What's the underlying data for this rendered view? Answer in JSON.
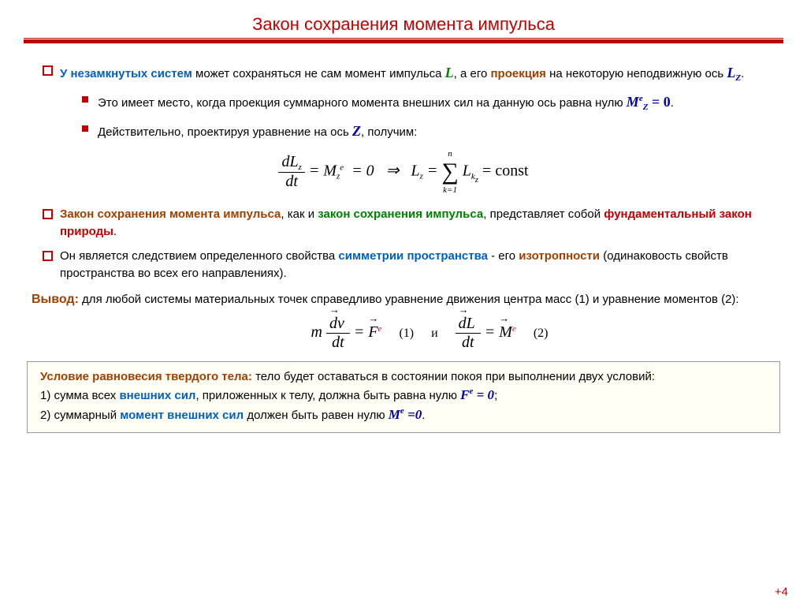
{
  "title": "Закон сохранения момента импульса",
  "b1": {
    "lead1": "У незамкнутых систем",
    "txt1": " может сохраняться не сам момент импульса ",
    "Lsym": "L",
    "txt2": ", а его ",
    "proj": "проекция",
    "txt3": " на некоторую неподвижную ось ",
    "Lz": "L",
    "LzSub": "Z",
    "dot": ".",
    "inner1": "Это имеет место, когда проекция суммарного момента внешних сил на данную ось равна нулю ",
    "Mez": "M",
    "MezSup": "e",
    "MezSub": "Z",
    "MezEq": " = 0",
    "inner2a": "Действительно, проектируя уравнение на ось ",
    "Zsym": "Z",
    "inner2b": ", получим:"
  },
  "eq1": {
    "lhsNum": "dL",
    "lhsSub": "z",
    "lhsDen": "dt",
    "rhs1": " = M",
    "rhs1sub": "z",
    "rhs1sup": "e",
    "rhs2": " = 0   ⇒   L",
    "rhs2sub": "z",
    "rhs3": " = ",
    "sum": "∑",
    "sumTop": "n",
    "sumBot": "k=1",
    "term": "L",
    "termSub": "k",
    "termSub2": "z",
    "const": " = const"
  },
  "b2": {
    "p1a": "Закон сохранения момента импульса",
    "p1b": ", как и ",
    "p1c": "закон сохранения импульса",
    "p1d": ", представляет собой ",
    "p1e": "фундаментальный закон природы",
    "p1f": ".",
    "p2a": "Он является следствием определенного свойства ",
    "p2b": "симметрии пространства",
    "p2c": " - его ",
    "p2d": "изотропности",
    "p2e": " (одинаковость свойств пространства во всех его направлениях)."
  },
  "concl": {
    "label": "Вывод:",
    "txt": " для любой системы материальных точек справедливо уравнение движения центра масс (1) и уравнение моментов (2):"
  },
  "eq2": {
    "m": "m",
    "num1": "dv",
    "den1": "dt",
    "eq": " = ",
    "F": "F",
    "Fsup": "e",
    "n1": "(1)",
    "and": "и",
    "num2": "dL",
    "den2": "dt",
    "M": "M",
    "Msup": "e",
    "n2": "(2)"
  },
  "box": {
    "head": "Условие равновесия твердого тела:",
    "headTxt": " тело будет оставаться в состоянии покоя при выполнении двух условий:",
    "l1a": "1) сумма всех ",
    "l1b": "внешних сил",
    "l1c": ", приложенных к телу, должна быть равна нулю ",
    "l1d": "F",
    "l1e": "e",
    "l1f": " = 0",
    "l1g": ";",
    "l2a": "2) суммарный ",
    "l2b": "момент внешних сил",
    "l2c": " должен быть равен нулю ",
    "l2d": "M",
    "l2e": "e",
    "l2f": " =0",
    "l2g": "."
  },
  "page": "+4"
}
